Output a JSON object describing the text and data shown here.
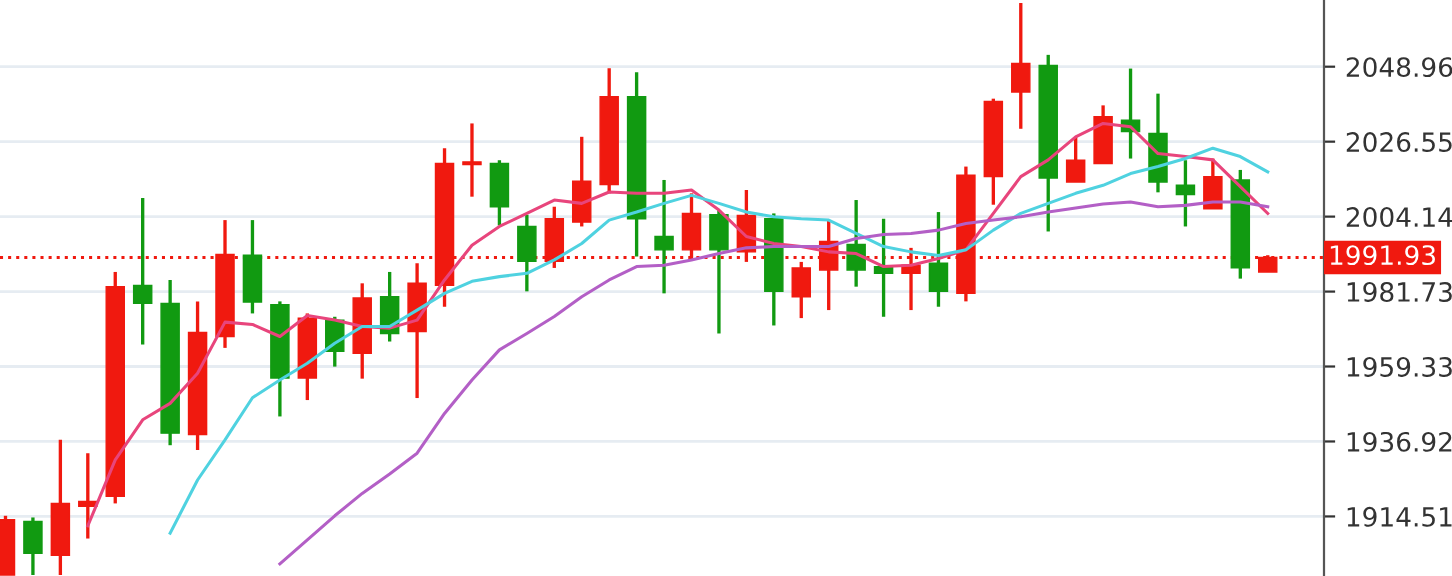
{
  "chart_data": {
    "type": "candlestick",
    "categories": [
      null,
      null,
      null,
      null,
      null,
      null,
      null,
      null,
      null,
      null,
      null,
      null,
      null,
      null,
      null,
      null,
      null,
      null,
      null,
      null,
      null,
      null,
      null,
      null,
      null,
      null,
      null,
      null,
      null,
      null,
      null,
      null,
      null,
      null,
      null,
      null,
      null,
      null,
      null,
      null,
      null,
      null,
      null,
      null,
      null,
      null,
      null
    ],
    "ohlc": [
      [
        1897,
        1914.7,
        1897,
        1913.5
      ],
      [
        1913.0,
        1914.2,
        1897,
        1903.5
      ],
      [
        1902.9,
        1937.4,
        1897,
        1918.4
      ],
      [
        1917.5,
        1933.4,
        1907.9,
        1919.0
      ],
      [
        1920.5,
        1987.6,
        1918.4,
        1983.2
      ],
      [
        1983.6,
        2009.7,
        1965.9,
        1978.2
      ],
      [
        1978.2,
        1985.2,
        1935.8,
        1939.4
      ],
      [
        1939.0,
        1978.8,
        1934.4,
        1969.5
      ],
      [
        1968.3,
        2003.1,
        1964.9,
        1992.8
      ],
      [
        1992.6,
        2003.1,
        1975.2,
        1978.6
      ],
      [
        1977.8,
        1978.8,
        1944.4,
        1955.9
      ],
      [
        1955.9,
        1975.2,
        1949.3,
        1973.8
      ],
      [
        1973.2,
        1974.2,
        1959.3,
        1963.9
      ],
      [
        1963.3,
        1984.2,
        1955.7,
        1979.8
      ],
      [
        1980.2,
        1987.6,
        1966.8,
        1969.2
      ],
      [
        1969.8,
        1990.2,
        1949.9,
        1984.2
      ],
      [
        1983.6,
        2024.6,
        1977.2,
        2020.0
      ],
      [
        2019.7,
        2032.0,
        2010.1,
        2020.5
      ],
      [
        2020.0,
        2021.0,
        2001.5,
        2007.1
      ],
      [
        2001.2,
        2004.7,
        1981.8,
        1990.8
      ],
      [
        1990.8,
        2007.1,
        1988.8,
        2003.5
      ],
      [
        2002.5,
        2028.0,
        2001.2,
        2014.7
      ],
      [
        2013.7,
        2048.5,
        2011.1,
        2040.0
      ],
      [
        2040.0,
        2047.3,
        1992.2,
        2003.5
      ],
      [
        1998.2,
        2015.1,
        1981.2,
        1994.2
      ],
      [
        1994.2,
        2011.1,
        1991.2,
        2005.1
      ],
      [
        2004.7,
        2006.1,
        1969.2,
        1994.2
      ],
      [
        1993.6,
        2012.1,
        1990.6,
        2004.5
      ],
      [
        2003.5,
        2005.1,
        1971.6,
        1981.8
      ],
      [
        1980.2,
        1990.6,
        1973.8,
        1988.8
      ],
      [
        1988.2,
        2003.1,
        1976.2,
        1996.7
      ],
      [
        1995.8,
        2009.1,
        1983.2,
        1988.2
      ],
      [
        1989.2,
        2003.5,
        1974.2,
        1987.2
      ],
      [
        1987.2,
        1994.8,
        1976.2,
        1989.6
      ],
      [
        1990.2,
        2005.5,
        1977.2,
        1981.8
      ],
      [
        1981.2,
        2019.1,
        1978.8,
        2016.5
      ],
      [
        2016.1,
        2039.4,
        2007.7,
        2038.6
      ],
      [
        2041.4,
        2068,
        2030.4,
        2049.9
      ],
      [
        2049.3,
        2052.5,
        1999.7,
        2015.7
      ],
      [
        2014.5,
        2028.0,
        2014.5,
        2021.0
      ],
      [
        2020.0,
        2037.4,
        2020.0,
        2034.0
      ],
      [
        2033.0,
        2048.4,
        2021.5,
        2029.6
      ],
      [
        2029.0,
        2040.9,
        2011.4,
        2014.5
      ],
      [
        2013.5,
        2021.0,
        2001.2,
        2010.7
      ],
      [
        2006.5,
        2021.5,
        2006.5,
        2016.1
      ],
      [
        2015.1,
        2018.1,
        1985.6,
        1988.8
      ],
      [
        1987.6,
        1992.6,
        1987.6,
        1991.93
      ]
    ],
    "colors": [
      "#f0190f",
      "#119a11",
      "#f0190f",
      "#f0190f",
      "#f0190f",
      "#119a11",
      "#119a11",
      "#f0190f",
      "#f0190f",
      "#119a11",
      "#119a11",
      "#f0190f",
      "#119a11",
      "#f0190f",
      "#119a11",
      "#f0190f",
      "#f0190f",
      "#f0190f",
      "#119a11",
      "#119a11",
      "#f0190f",
      "#f0190f",
      "#f0190f",
      "#119a11",
      "#119a11",
      "#f0190f",
      "#119a11",
      "#f0190f",
      "#119a11",
      "#f0190f",
      "#f0190f",
      "#119a11",
      "#119a11",
      "#f0190f",
      "#119a11",
      "#f0190f",
      "#f0190f",
      "#f0190f",
      "#119a11",
      "#f0190f",
      "#f0190f",
      "#119a11",
      "#119a11",
      "#119a11",
      "#f0190f",
      "#119a11",
      "#f0190f"
    ],
    "series": [
      {
        "type": "line",
        "color": "#e8457c",
        "values": [
          null,
          null,
          null,
          1911.7,
          1931.4,
          1943.4,
          1948.3,
          1957.3,
          1972.6,
          1971.9,
          1968.3,
          1974.6,
          1973.2,
          1971.3,
          1970.8,
          1973.2,
          1985.2,
          1995.6,
          2001.2,
          2005.1,
          2009.1,
          2008.1,
          2011.5,
          2011.1,
          2011.1,
          2012.1,
          2006.1,
          1998.2,
          1996.1,
          1995.2,
          1993.6,
          1993.1,
          1989.2,
          1989.6,
          1991.6,
          1994.2,
          2005.1,
          2016.1,
          2021.1,
          2028.0,
          2032.0,
          2031.0,
          2023.0,
          2022.1,
          2021.1,
          2013.1,
          2005.1
        ]
      },
      {
        "type": "line",
        "color": "#4fd2e0",
        "values": [
          null,
          null,
          null,
          null,
          null,
          null,
          1909.5,
          1925.4,
          1937.4,
          1950.0,
          1955.3,
          1960.3,
          1966.3,
          1971.3,
          1971.3,
          1976.2,
          1981.2,
          1984.8,
          1986.2,
          1987.2,
          1991.2,
          1996.1,
          2003.1,
          2005.5,
          2008.1,
          2010.5,
          2008.1,
          2005.5,
          2004.1,
          2003.5,
          2003.1,
          1999.1,
          1995.2,
          1993.6,
          1992.5,
          1994.2,
          2000.1,
          2005.1,
          2008.1,
          2011.1,
          2013.5,
          2017.0,
          2019.1,
          2021.5,
          2024.6,
          2022.1,
          2017.5
        ]
      },
      {
        "type": "line",
        "color": "#b35fc6",
        "values": [
          null,
          null,
          null,
          null,
          null,
          null,
          null,
          null,
          null,
          null,
          1900.3,
          1907.5,
          1914.7,
          1921.4,
          1927.2,
          1933.4,
          1945.3,
          1955.3,
          1964.3,
          1969.2,
          1974.3,
          1980.2,
          1985.2,
          1989.2,
          1989.6,
          1991.2,
          1993.1,
          1994.8,
          1995.2,
          1995.2,
          1995.2,
          1997.6,
          1998.8,
          1999.1,
          2000.1,
          2002.1,
          2003.1,
          2004.1,
          2005.5,
          2006.7,
          2007.9,
          2008.5,
          2007.1,
          2007.5,
          2008.5,
          2008.5,
          2007.1
        ]
      }
    ],
    "ylim": [
      1896.7,
      2068.9
    ],
    "yticks": [
      1914.51,
      1936.92,
      1959.33,
      1981.73,
      2004.14,
      2026.55,
      2048.96
    ],
    "ref_lines": [
      {
        "axis": "y",
        "value": 1991.93,
        "label": "1991.93",
        "color": "#f0190f",
        "line_style": "dotted"
      }
    ],
    "grid": "y",
    "tick_labels": "y"
  }
}
